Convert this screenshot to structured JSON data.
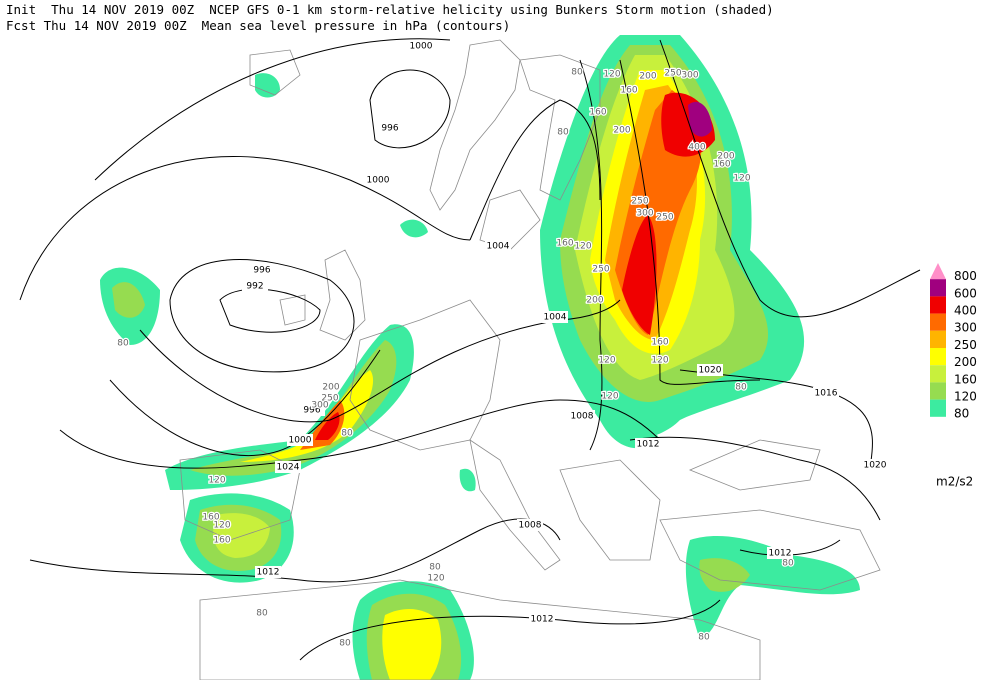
{
  "header": {
    "line1": "Init  Thu 14 NOV 2019 00Z  NCEP GFS 0-1 km storm-relative helicity using Bunkers Storm motion (shaded)",
    "line2": "Fcst Thu 14 NOV 2019 00Z  Mean sea level pressure in hPa (contours)"
  },
  "legend": {
    "levels": [
      {
        "label": "800",
        "color": "#ff8fc8"
      },
      {
        "label": "600",
        "color": "#a0007f"
      },
      {
        "label": "400",
        "color": "#f00000"
      },
      {
        "label": "300",
        "color": "#ff6a00"
      },
      {
        "label": "250",
        "color": "#ffb400"
      },
      {
        "label": "200",
        "color": "#ffff00"
      },
      {
        "label": "160",
        "color": "#c8f03c"
      },
      {
        "label": "120",
        "color": "#96dc50"
      },
      {
        "label": "80",
        "color": "#3ceba0"
      }
    ],
    "unit": "m2/s2"
  },
  "isobar_labels": [
    "1000",
    "996",
    "1000",
    "1004",
    "996",
    "992",
    "1004",
    "996",
    "1000",
    "1024",
    "1008",
    "1012",
    "1020",
    "1016",
    "1020",
    "1008",
    "1012",
    "1012",
    "1012"
  ],
  "helicity_labels": [
    "80",
    "80",
    "120",
    "160",
    "200",
    "250",
    "300",
    "400",
    "200",
    "160",
    "120",
    "200",
    "160",
    "250",
    "300",
    "250",
    "120",
    "160",
    "200",
    "250",
    "120",
    "160",
    "120",
    "80",
    "200",
    "250",
    "300",
    "80",
    "120",
    "160",
    "160",
    "120",
    "80",
    "120",
    "80",
    "120",
    "80",
    "80",
    "80",
    "80"
  ]
}
